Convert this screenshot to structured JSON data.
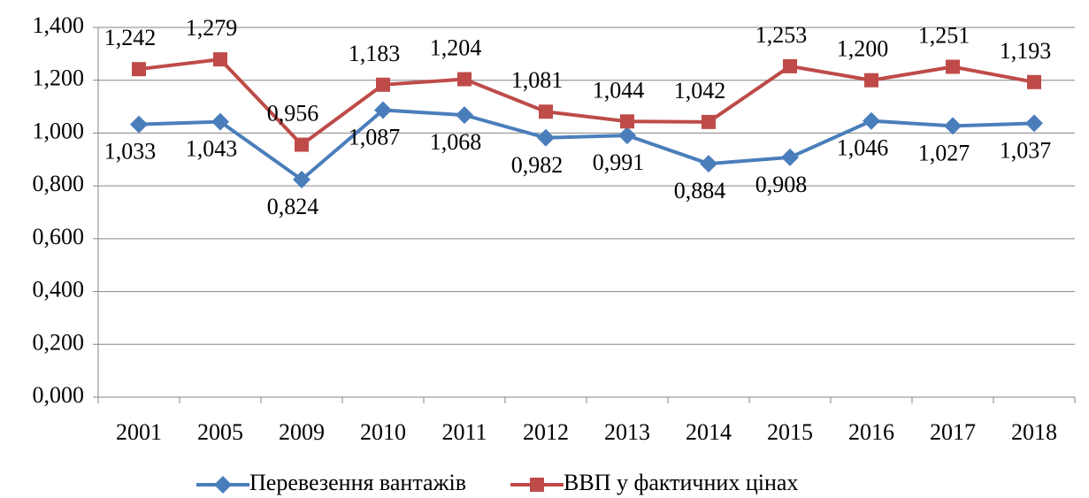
{
  "chart_data": {
    "type": "line",
    "categories": [
      "2001",
      "2005",
      "2009",
      "2010",
      "2011",
      "2012",
      "2013",
      "2014",
      "2015",
      "2016",
      "2017",
      "2018"
    ],
    "series": [
      {
        "name": "Перевезення вантажів",
        "color": "#4a7ebb",
        "marker": "diamond",
        "values": [
          1.033,
          1.043,
          0.824,
          1.087,
          1.068,
          0.982,
          0.991,
          0.884,
          0.908,
          1.046,
          1.027,
          1.037
        ],
        "value_labels": [
          "1,033",
          "1,043",
          "0,824",
          "1,087",
          "1,068",
          "0,982",
          "0,991",
          "0,884",
          "0,908",
          "1,046",
          "1,027",
          "1,037"
        ]
      },
      {
        "name": "ВВП у фактичних цінах",
        "color": "#be4b48",
        "marker": "square",
        "values": [
          1.242,
          1.279,
          0.956,
          1.183,
          1.204,
          1.081,
          1.044,
          1.042,
          1.253,
          1.2,
          1.251,
          1.193
        ],
        "value_labels": [
          "1,242",
          "1,279",
          "0,956",
          "1,183",
          "1,204",
          "1,081",
          "1,044",
          "1,042",
          "1,253",
          "1,200",
          "1,251",
          "1,193"
        ]
      }
    ],
    "ylim": [
      0,
      1.4
    ],
    "yticks": [
      {
        "value": 0,
        "label": "0,000"
      },
      {
        "value": 0.2,
        "label": "0,200"
      },
      {
        "value": 0.4,
        "label": "0,400"
      },
      {
        "value": 0.6,
        "label": "0,600"
      },
      {
        "value": 0.8,
        "label": "0,800"
      },
      {
        "value": 1,
        "label": "1,000"
      },
      {
        "value": 1.2,
        "label": "1,200"
      },
      {
        "value": 1.4,
        "label": "1,400"
      }
    ],
    "grid": true,
    "legend": "bottom"
  }
}
